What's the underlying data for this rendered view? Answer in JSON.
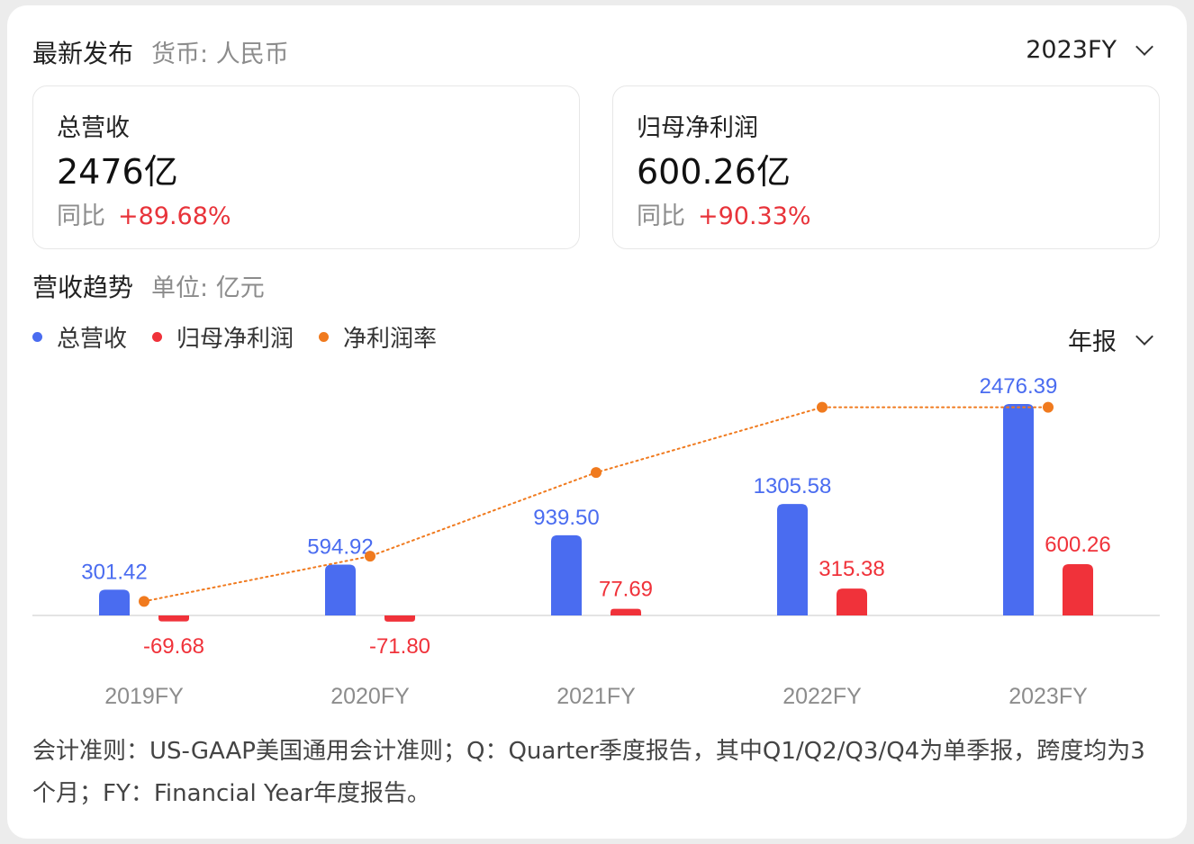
{
  "header": {
    "title": "最新发布",
    "currency": "货币: 人民币",
    "period": "2023FY"
  },
  "metrics": [
    {
      "label": "总营收",
      "value": "2476亿",
      "yoy_label": "同比",
      "yoy": "+89.68%"
    },
    {
      "label": "归母净利润",
      "value": "600.26亿",
      "yoy_label": "同比",
      "yoy": "+90.33%"
    }
  ],
  "trend": {
    "title": "营收趋势",
    "unit": "单位: 亿元",
    "frequency": "年报"
  },
  "legend": [
    {
      "label": "总营收",
      "color": "#4a6cf0"
    },
    {
      "label": "归母净利润",
      "color": "#f0323a"
    },
    {
      "label": "净利润率",
      "color": "#f07a1e"
    }
  ],
  "chart_data": {
    "type": "bar",
    "categories": [
      "2019FY",
      "2020FY",
      "2021FY",
      "2022FY",
      "2023FY"
    ],
    "series": [
      {
        "name": "总营收",
        "type": "bar",
        "color": "#4a6cf0",
        "values": [
          301.42,
          594.92,
          939.5,
          1305.58,
          2476.39
        ],
        "labels": [
          "301.42",
          "594.92",
          "939.50",
          "1305.58",
          "2476.39"
        ]
      },
      {
        "name": "归母净利润",
        "type": "bar",
        "color": "#f0323a",
        "values": [
          -69.68,
          -71.8,
          77.69,
          315.38,
          600.26
        ],
        "labels": [
          "-69.68",
          "-71.80",
          "77.69",
          "315.38",
          "600.26"
        ]
      },
      {
        "name": "净利润率",
        "type": "line",
        "style": "dotted",
        "color": "#f07a1e",
        "values_percent": [
          -23.1,
          -12.1,
          8.3,
          24.2,
          24.2
        ]
      }
    ],
    "grid": false
  },
  "footnote": "会计准则：US-GAAP美国通用会计准则；Q：Quarter季度报告，其中Q1/Q2/Q3/Q4为单季报，跨度均为3个月；FY：Financial Year年度报告。"
}
